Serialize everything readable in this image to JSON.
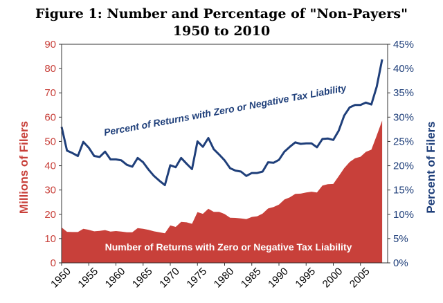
{
  "title_line1": "Figure 1: Number and Percentage of \"Non-Payers\"",
  "title_line2": "1950 to 2010",
  "chart_data": {
    "type": "area",
    "x": [
      1950,
      1951,
      1952,
      1953,
      1954,
      1955,
      1956,
      1957,
      1958,
      1959,
      1960,
      1961,
      1962,
      1963,
      1964,
      1965,
      1966,
      1967,
      1968,
      1969,
      1970,
      1971,
      1972,
      1973,
      1974,
      1975,
      1976,
      1977,
      1978,
      1979,
      1980,
      1981,
      1982,
      1983,
      1984,
      1985,
      1986,
      1987,
      1988,
      1989,
      1990,
      1991,
      1992,
      1993,
      1994,
      1995,
      1996,
      1997,
      1998,
      1999,
      2000,
      2001,
      2002,
      2003,
      2004,
      2005,
      2006,
      2007,
      2008,
      2009
    ],
    "series": [
      {
        "name": "Number of Returns with Zero or Negative Tax Liability",
        "axis": "left",
        "kind": "area",
        "color": "#c8403a",
        "values": [
          14.6,
          12.8,
          12.7,
          12.7,
          14.0,
          13.6,
          13.0,
          13.2,
          13.5,
          12.9,
          13.1,
          12.9,
          12.6,
          12.6,
          14.3,
          14.0,
          13.6,
          13.0,
          12.6,
          12.2,
          15.4,
          14.8,
          16.9,
          16.7,
          16.1,
          20.9,
          20.2,
          22.3,
          21.0,
          21.0,
          20.1,
          18.6,
          18.5,
          18.3,
          18.0,
          18.9,
          19.2,
          20.3,
          22.4,
          23.0,
          24.0,
          26.1,
          27.0,
          28.4,
          28.5,
          29.0,
          29.3,
          29.0,
          31.8,
          32.4,
          32.5,
          35.7,
          39.0,
          41.5,
          43.1,
          43.7,
          45.7,
          46.6,
          52.5,
          58.6
        ]
      },
      {
        "name": "Percent of Returns with Zero or Negative Tax Liability",
        "axis": "right",
        "kind": "line",
        "color": "#1f3f7a",
        "values": [
          28.0,
          23.1,
          22.6,
          22.0,
          24.9,
          23.7,
          22.0,
          21.8,
          22.9,
          21.3,
          21.3,
          21.1,
          20.2,
          19.8,
          21.6,
          20.7,
          19.2,
          17.9,
          16.9,
          16.0,
          20.1,
          19.7,
          21.6,
          20.4,
          19.3,
          25.0,
          23.9,
          25.7,
          23.4,
          22.3,
          21.1,
          19.5,
          19.0,
          18.8,
          17.9,
          18.5,
          18.5,
          18.8,
          20.7,
          20.6,
          21.2,
          22.9,
          23.9,
          24.8,
          24.5,
          24.6,
          24.6,
          23.8,
          25.5,
          25.6,
          25.3,
          27.2,
          30.3,
          32.0,
          32.5,
          32.5,
          33.0,
          32.6,
          36.3,
          41.9
        ]
      }
    ],
    "xticks": [
      "1950",
      "1955",
      "1960",
      "1965",
      "1970",
      "1975",
      "1980",
      "1985",
      "1990",
      "1995",
      "2000",
      "2005"
    ],
    "yticks_left": [
      "0",
      "10",
      "20",
      "30",
      "40",
      "50",
      "60",
      "70",
      "80",
      "90"
    ],
    "yticks_right": [
      "0%",
      "5%",
      "10%",
      "15%",
      "20%",
      "25%",
      "30%",
      "35%",
      "40%",
      "45%"
    ],
    "ylabel_left": "Millions of Filers",
    "ylabel_right": "Percent of Filers",
    "ylim_left": [
      0,
      90
    ],
    "ylim_right": [
      0,
      45
    ],
    "xlim": [
      1950,
      2010
    ],
    "annotation_line": "Percent of Returns with Zero or Negative Tax Liability",
    "annotation_area": "Number of Returns with Zero or Negative Tax Liability",
    "grid": false
  }
}
